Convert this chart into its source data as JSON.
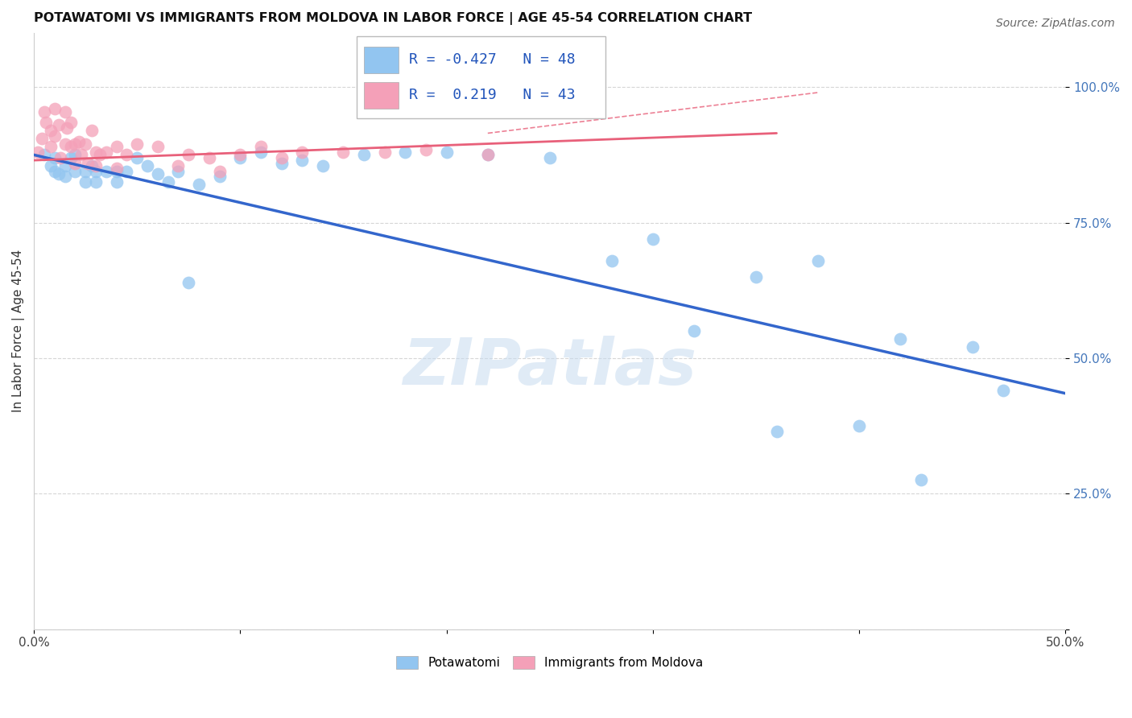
{
  "title": "POTAWATOMI VS IMMIGRANTS FROM MOLDOVA IN LABOR FORCE | AGE 45-54 CORRELATION CHART",
  "source": "Source: ZipAtlas.com",
  "ylabel": "In Labor Force | Age 45-54",
  "legend_blue_label": "Potawatomi",
  "legend_pink_label": "Immigrants from Moldova",
  "R_blue": -0.427,
  "N_blue": 48,
  "R_pink": 0.219,
  "N_pink": 43,
  "xmin": 0.0,
  "xmax": 0.5,
  "ymin": 0.0,
  "ymax": 1.1,
  "blue_color": "#92C5F0",
  "pink_color": "#F4A0B8",
  "blue_line_color": "#3366CC",
  "pink_line_color": "#E8607A",
  "watermark_color": "#C8DCF0",
  "blue_scatter_x": [
    0.005,
    0.008,
    0.01,
    0.01,
    0.012,
    0.015,
    0.015,
    0.018,
    0.02,
    0.02,
    0.025,
    0.025,
    0.028,
    0.03,
    0.03,
    0.035,
    0.04,
    0.04,
    0.045,
    0.05,
    0.055,
    0.06,
    0.065,
    0.07,
    0.075,
    0.08,
    0.09,
    0.1,
    0.11,
    0.12,
    0.13,
    0.14,
    0.16,
    0.18,
    0.2,
    0.22,
    0.25,
    0.28,
    0.3,
    0.32,
    0.35,
    0.36,
    0.38,
    0.4,
    0.42,
    0.43,
    0.455,
    0.47
  ],
  "blue_scatter_y": [
    0.875,
    0.855,
    0.87,
    0.845,
    0.84,
    0.855,
    0.835,
    0.87,
    0.875,
    0.845,
    0.845,
    0.825,
    0.855,
    0.845,
    0.825,
    0.845,
    0.845,
    0.825,
    0.845,
    0.87,
    0.855,
    0.84,
    0.825,
    0.845,
    0.64,
    0.82,
    0.835,
    0.87,
    0.88,
    0.86,
    0.865,
    0.855,
    0.875,
    0.88,
    0.88,
    0.875,
    0.87,
    0.68,
    0.72,
    0.55,
    0.65,
    0.365,
    0.68,
    0.375,
    0.535,
    0.275,
    0.52,
    0.44
  ],
  "pink_scatter_x": [
    0.002,
    0.004,
    0.005,
    0.006,
    0.008,
    0.008,
    0.01,
    0.01,
    0.012,
    0.013,
    0.015,
    0.015,
    0.016,
    0.018,
    0.018,
    0.02,
    0.02,
    0.022,
    0.023,
    0.025,
    0.026,
    0.028,
    0.03,
    0.03,
    0.032,
    0.035,
    0.04,
    0.04,
    0.045,
    0.05,
    0.06,
    0.07,
    0.075,
    0.085,
    0.09,
    0.1,
    0.11,
    0.12,
    0.13,
    0.15,
    0.17,
    0.19,
    0.22
  ],
  "pink_scatter_y": [
    0.88,
    0.905,
    0.955,
    0.935,
    0.92,
    0.89,
    0.96,
    0.91,
    0.93,
    0.87,
    0.955,
    0.895,
    0.925,
    0.935,
    0.89,
    0.895,
    0.86,
    0.9,
    0.875,
    0.895,
    0.86,
    0.92,
    0.88,
    0.855,
    0.875,
    0.88,
    0.89,
    0.85,
    0.875,
    0.895,
    0.89,
    0.855,
    0.875,
    0.87,
    0.845,
    0.875,
    0.89,
    0.87,
    0.88,
    0.88,
    0.88,
    0.885,
    0.875
  ],
  "blue_line_x0": 0.0,
  "blue_line_y0": 0.875,
  "blue_line_x1": 0.5,
  "blue_line_y1": 0.435,
  "pink_line_x0": 0.0,
  "pink_line_y0": 0.865,
  "pink_line_x1": 0.36,
  "pink_line_y1": 0.915
}
